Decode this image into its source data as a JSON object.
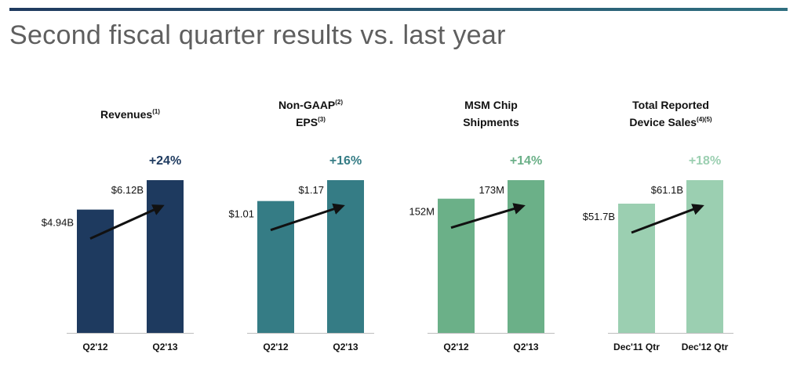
{
  "page": {
    "title": "Second fiscal quarter results vs. last year"
  },
  "chart_data": [
    {
      "type": "bar",
      "title": "Revenues",
      "title_sup": "(1)",
      "title2": "",
      "title2_sup": "",
      "categories": [
        "Q2'12",
        "Q2'13"
      ],
      "values": [
        4.94,
        6.12
      ],
      "value_labels": [
        "$4.94B",
        "$6.12B"
      ],
      "unit": "$B",
      "change": "+24%",
      "color": "#1e3a5f",
      "change_color": "#1e3a5f",
      "ylim": [
        0,
        6.12
      ]
    },
    {
      "type": "bar",
      "title": "Non-GAAP",
      "title_sup": "(2)",
      "title2": "EPS",
      "title2_sup": "(3)",
      "categories": [
        "Q2'12",
        "Q2'13"
      ],
      "values": [
        1.01,
        1.17
      ],
      "value_labels": [
        "$1.01",
        "$1.17"
      ],
      "unit": "$",
      "change": "+16%",
      "color": "#357c85",
      "change_color": "#357c85",
      "ylim": [
        0,
        1.17
      ]
    },
    {
      "type": "bar",
      "title": "MSM Chip",
      "title_sup": "",
      "title2": "Shipments",
      "title2_sup": "",
      "categories": [
        "Q2'12",
        "Q2'13"
      ],
      "values": [
        152,
        173
      ],
      "value_labels": [
        "152M",
        "173M"
      ],
      "unit": "M",
      "change": "+14%",
      "color": "#6bb088",
      "change_color": "#6bb088",
      "ylim": [
        0,
        173
      ]
    },
    {
      "type": "bar",
      "title": "Total Reported",
      "title_sup": "",
      "title2": "Device Sales",
      "title2_sup": "(4)(5)",
      "categories": [
        "Dec'11 Qtr",
        "Dec'12 Qtr"
      ],
      "values": [
        51.7,
        61.1
      ],
      "value_labels": [
        "$51.7B",
        "$61.1B"
      ],
      "unit": "$B",
      "change": "+18%",
      "color": "#9bcfb1",
      "change_color": "#9bcfb1",
      "ylim": [
        0,
        61.1
      ]
    }
  ]
}
